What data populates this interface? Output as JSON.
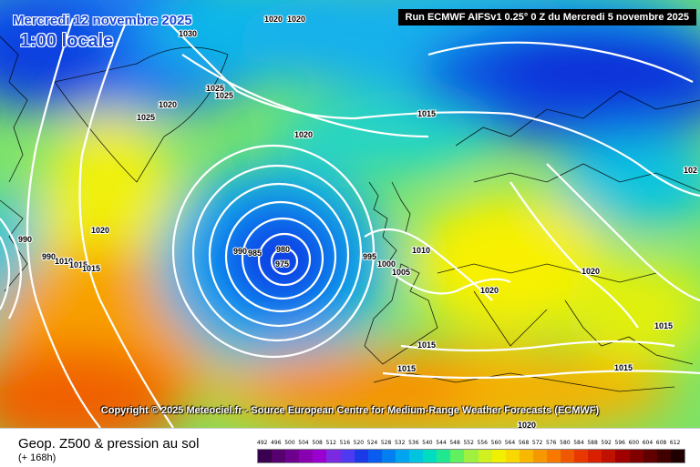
{
  "header": {
    "date": "Mercredi 12 novembre 2025",
    "local_time": "1:00 locale",
    "run_info": "Run ECMWF AIFSv1 0.25° 0 Z du Mercredi 5 novembre 2025"
  },
  "copyright": "Copyright © 2025 Meteociel.fr - Source European Centre for Medium-Range Weather Forecasts (ECMWF)",
  "footer": {
    "product": "Geop. Z500 & pression au sol",
    "lead_time": "(+ 168h)"
  },
  "legend": {
    "values": [
      "492",
      "496",
      "500",
      "504",
      "508",
      "512",
      "516",
      "520",
      "524",
      "528",
      "532",
      "536",
      "540",
      "544",
      "548",
      "552",
      "556",
      "560",
      "564",
      "568",
      "572",
      "576",
      "580",
      "584",
      "588",
      "592",
      "596",
      "600",
      "604",
      "608",
      "612"
    ],
    "colors": [
      "#3a0050",
      "#55006e",
      "#6e0090",
      "#8800b0",
      "#9a00d0",
      "#7a2ae0",
      "#4e3af0",
      "#1a3ae8",
      "#0a5cf0",
      "#0080f0",
      "#00a4f0",
      "#00c4e0",
      "#00dcc0",
      "#20e890",
      "#60f060",
      "#a0f040",
      "#d0f020",
      "#f0f000",
      "#f8d800",
      "#f8b800",
      "#f89800",
      "#f87800",
      "#f05800",
      "#e83800",
      "#d82000",
      "#c01000",
      "#a00000",
      "#800000",
      "#600000",
      "#400000",
      "#200000"
    ]
  },
  "pressure_labels": [
    "1030",
    "1020",
    "1020",
    "1025",
    "1025",
    "1020",
    "1025",
    "1020",
    "1015",
    "1020",
    "990",
    "990",
    "1010",
    "1015",
    "1015",
    "990",
    "985",
    "980",
    "975",
    "995",
    "1000",
    "1005",
    "1010",
    "1020",
    "1020",
    "1015",
    "1015",
    "1015",
    "1015",
    "1020",
    "102"
  ]
}
